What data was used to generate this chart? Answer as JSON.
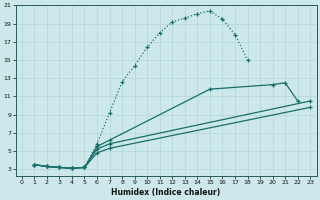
{
  "xlabel": "Humidex (Indice chaleur)",
  "bg_color": "#cce8ea",
  "line_color": "#1a6e6a",
  "grid_color": "#b5d5d8",
  "xlim": [
    -0.5,
    23.5
  ],
  "ylim": [
    2.3,
    21.0
  ],
  "xticks": [
    0,
    1,
    2,
    3,
    4,
    5,
    6,
    7,
    8,
    9,
    10,
    11,
    12,
    13,
    14,
    15,
    16,
    17,
    18,
    19,
    20,
    21,
    22,
    23
  ],
  "yticks": [
    3,
    5,
    7,
    9,
    11,
    13,
    15,
    17,
    19,
    21
  ],
  "curve_main_dotted": {
    "x": [
      1,
      2,
      3,
      4,
      5,
      6,
      7,
      8,
      9,
      10,
      11,
      12,
      13,
      14,
      15,
      16,
      17,
      18
    ],
    "y": [
      3.5,
      3.3,
      3.2,
      3.1,
      3.2,
      5.8,
      9.2,
      12.6,
      14.4,
      16.4,
      18.0,
      19.2,
      19.6,
      20.1,
      20.4,
      19.5,
      17.8,
      15.0
    ]
  },
  "curve2": {
    "x": [
      1,
      2,
      3,
      4,
      5,
      6,
      7,
      15,
      20,
      21,
      22
    ],
    "y": [
      3.5,
      3.3,
      3.2,
      3.1,
      3.2,
      5.5,
      6.2,
      11.8,
      12.3,
      12.5,
      10.5
    ]
  },
  "curve3": {
    "x": [
      1,
      2,
      3,
      4,
      5,
      6,
      7,
      23
    ],
    "y": [
      3.5,
      3.3,
      3.2,
      3.1,
      3.2,
      5.2,
      5.8,
      10.5
    ]
  },
  "curve4": {
    "x": [
      1,
      2,
      3,
      4,
      5,
      6,
      7,
      23
    ],
    "y": [
      3.5,
      3.3,
      3.2,
      3.1,
      3.2,
      4.8,
      5.3,
      9.8
    ]
  }
}
